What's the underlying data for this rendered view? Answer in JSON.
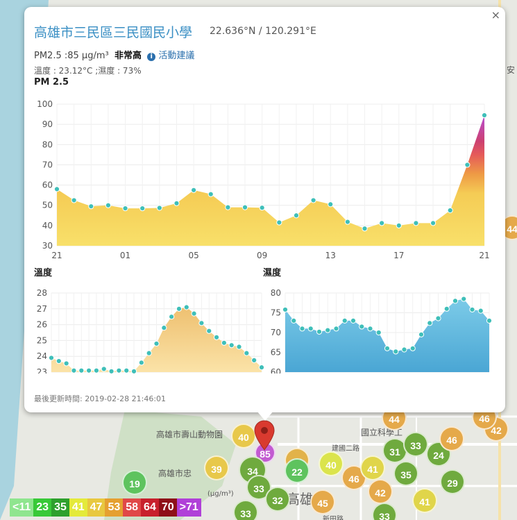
{
  "map": {
    "labels": [
      "高雄市壽山動物園",
      "國立科學工",
      "高雄市忠",
      "建國二路",
      "新田路",
      "(μg/m³)",
      "高雄市",
      "安"
    ],
    "markers": [
      {
        "value": "40",
        "color": "#e8c84a"
      },
      {
        "value": "85",
        "color": "#c25bd1"
      },
      {
        "value": "42",
        "color": "#e2b24a"
      },
      {
        "value": "40",
        "color": "#dbe44c"
      },
      {
        "value": "39",
        "color": "#e8c84a"
      },
      {
        "value": "34",
        "color": "#6faa3e"
      },
      {
        "value": "22",
        "color": "#5ec35e"
      },
      {
        "value": "46",
        "color": "#e5a94a"
      },
      {
        "value": "41",
        "color": "#e0d54a"
      },
      {
        "value": "35",
        "color": "#6faa3e"
      },
      {
        "value": "33",
        "color": "#6faa3e"
      },
      {
        "value": "32",
        "color": "#6faa3e"
      },
      {
        "value": "45",
        "color": "#e5a94a"
      },
      {
        "value": "42",
        "color": "#e5a94a"
      },
      {
        "value": "31",
        "color": "#6faa3e"
      },
      {
        "value": "33",
        "color": "#6faa3e"
      },
      {
        "value": "24",
        "color": "#6faa3e"
      },
      {
        "value": "46",
        "color": "#e5a94a"
      },
      {
        "value": "42",
        "color": "#e5a94a"
      },
      {
        "value": "29",
        "color": "#6faa3e"
      },
      {
        "value": "41",
        "color": "#e0d54a"
      },
      {
        "value": "19",
        "color": "#5ec35e"
      },
      {
        "value": "44",
        "color": "#e5a94a"
      },
      {
        "value": "46",
        "color": "#e5a94a"
      },
      {
        "value": "33",
        "color": "#6faa3e"
      },
      {
        "value": "33",
        "color": "#6faa3e"
      },
      {
        "value": "44",
        "color": "#e5a94a"
      }
    ],
    "legend": [
      {
        "label": "<11",
        "color": "#8fe58f"
      },
      {
        "label": "23",
        "color": "#38c938"
      },
      {
        "label": "35",
        "color": "#2ea02e"
      },
      {
        "label": "41",
        "color": "#e4ea3a"
      },
      {
        "label": "47",
        "color": "#e8c840"
      },
      {
        "label": "53",
        "color": "#e5a030"
      },
      {
        "label": "58",
        "color": "#e04848"
      },
      {
        "label": "64",
        "color": "#c8202c"
      },
      {
        "label": "70",
        "color": "#8e1018"
      },
      {
        "label": ">71",
        "color": "#b040d8"
      }
    ]
  },
  "popup": {
    "close": "×",
    "station_name": "高雄市三民區三民國民小學",
    "coords": "22.636°N / 120.291°E",
    "pm25_text": "PM2.5 :85 μg/m³",
    "level": "非常高",
    "advice_icon": "info-icon",
    "advice": "活動建議",
    "weather": "溫度 : 23.12°C ;濕度 : 73%",
    "updated": "最後更新時間: 2019-02-28 21:46:01"
  },
  "chart_data": [
    {
      "type": "area",
      "title": "PM 2.5",
      "x_ticks": [
        "21",
        "01",
        "05",
        "09",
        "13",
        "17",
        "21"
      ],
      "ylim": [
        30,
        100
      ],
      "y_ticks": [
        30,
        40,
        50,
        60,
        70,
        80,
        90,
        100
      ],
      "grid": true,
      "values": [
        58,
        52.5,
        49.5,
        50,
        48.5,
        48.5,
        48.7,
        51,
        57.5,
        55.5,
        49,
        49,
        48.8,
        41.5,
        45,
        52.5,
        50.5,
        41.8,
        38.5,
        41.2,
        40,
        41.2,
        41.2,
        47.5,
        70,
        94.5
      ]
    },
    {
      "type": "area",
      "title": "溫度",
      "ylim": [
        23,
        28
      ],
      "y_ticks": [
        23,
        24,
        25,
        26,
        27,
        28
      ],
      "grid": true,
      "values": [
        23.9,
        23.7,
        23.55,
        23.1,
        23.1,
        23.1,
        23.1,
        23.2,
        23.05,
        23.1,
        23.1,
        23.05,
        23.6,
        24.2,
        24.8,
        25.8,
        26.5,
        27,
        27.1,
        26.7,
        26.1,
        25.6,
        25.2,
        24.85,
        24.7,
        24.6,
        24.2,
        23.75,
        23.3
      ]
    },
    {
      "type": "area",
      "title": "濕度",
      "ylim": [
        60,
        80
      ],
      "y_ticks": [
        60,
        65,
        70,
        75,
        80
      ],
      "grid": true,
      "values": [
        75.8,
        73,
        71,
        71,
        70.2,
        70.6,
        71,
        73,
        73,
        71.5,
        71,
        70,
        66,
        65.2,
        65.7,
        66,
        69.5,
        72.4,
        73.6,
        76,
        78,
        78.5,
        75.8,
        75.5,
        73
      ]
    }
  ]
}
